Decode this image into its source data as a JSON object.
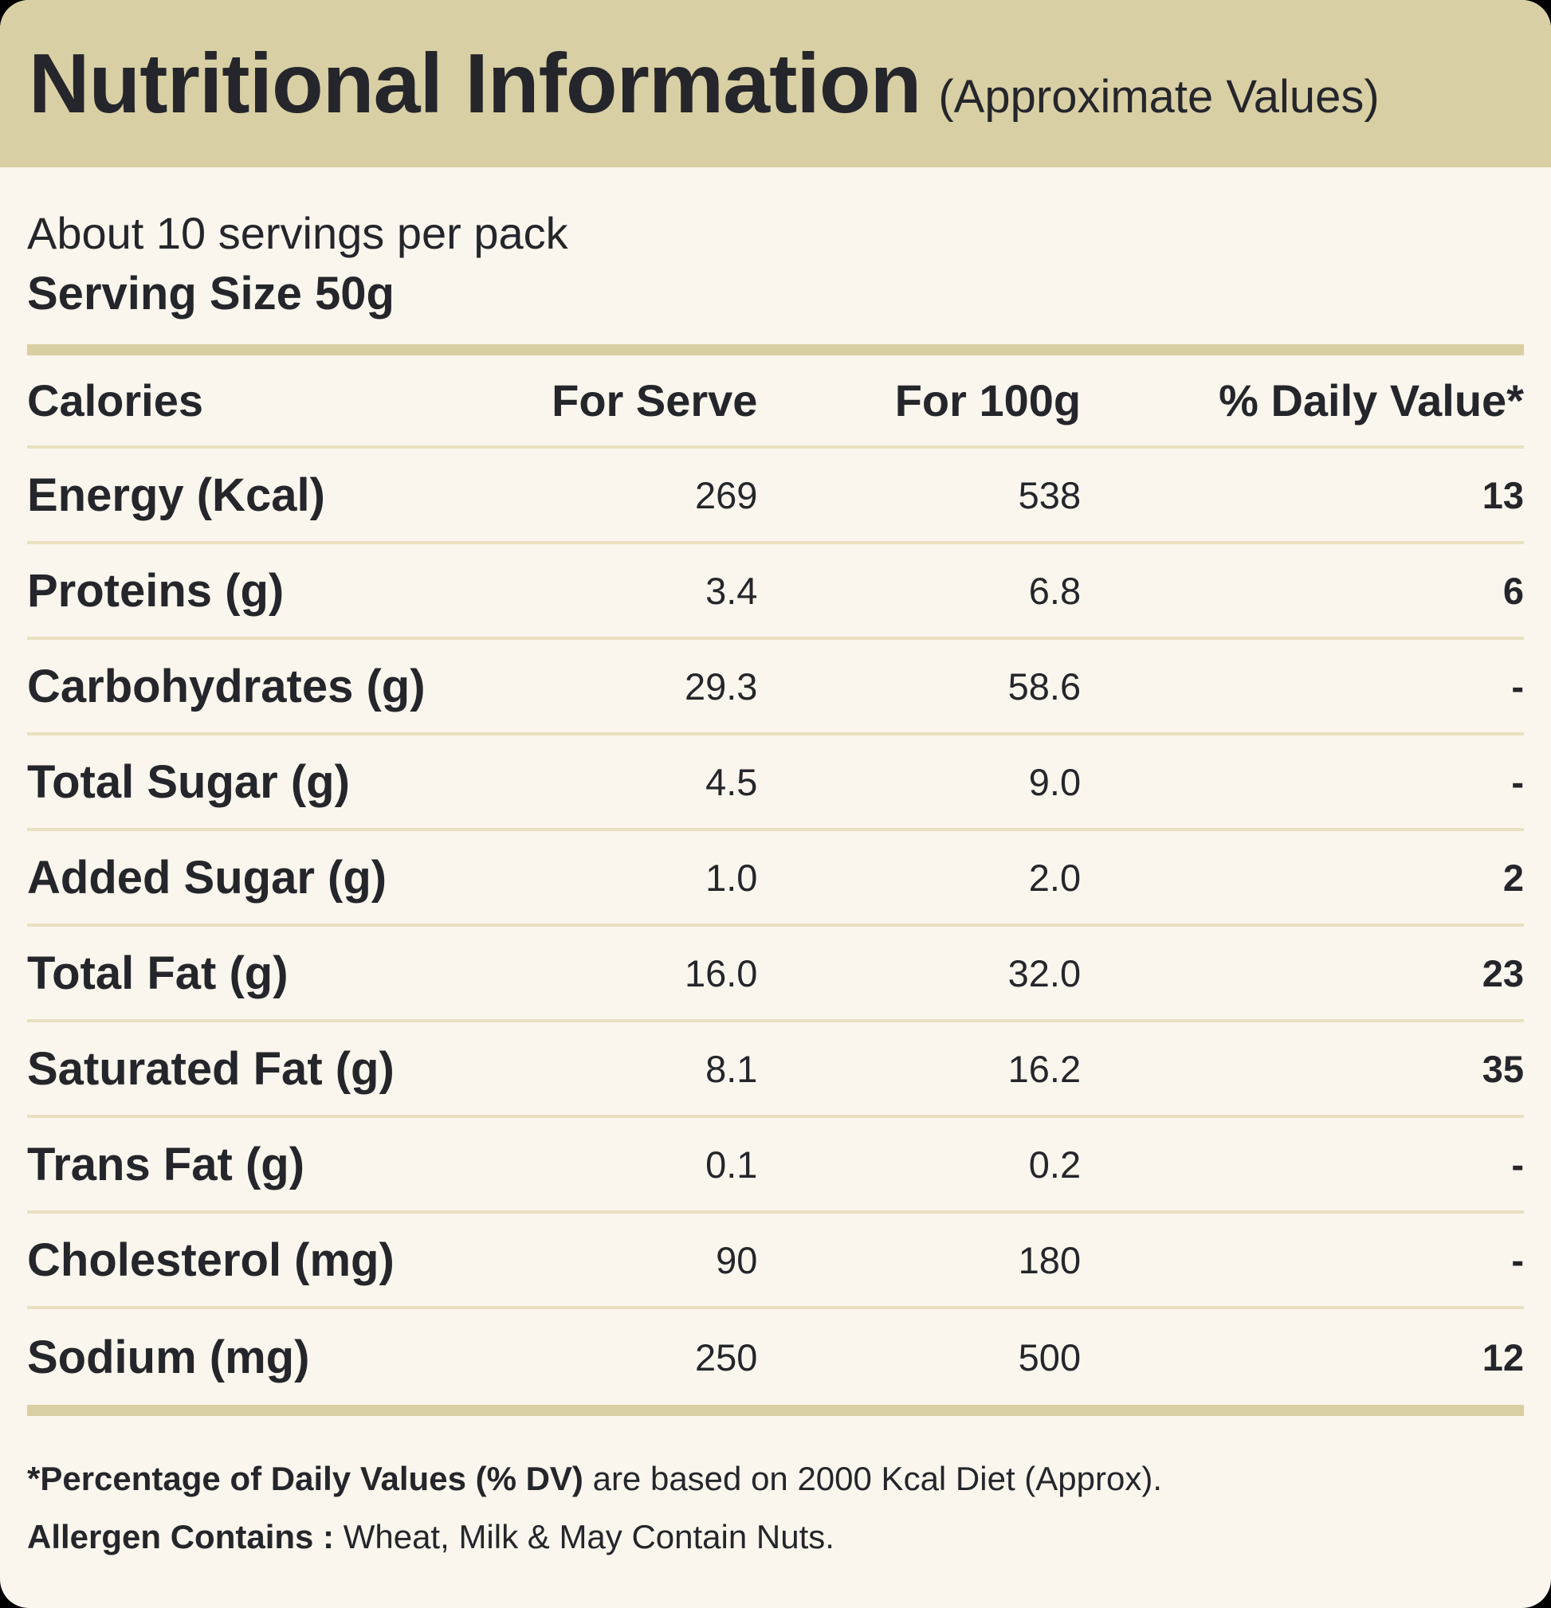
{
  "header": {
    "title": "Nutritional Information",
    "subtitle": "(Approximate Values)"
  },
  "serving": {
    "servings_per_pack": "About 10 servings per pack",
    "serving_size": "Serving Size 50g"
  },
  "table": {
    "columns": [
      "Calories",
      "For Serve",
      "For 100g",
      "% Daily Value*"
    ],
    "rows": [
      {
        "label": "Energy (Kcal)",
        "serve": "269",
        "per100": "538",
        "dv": "13"
      },
      {
        "label": "Proteins (g)",
        "serve": "3.4",
        "per100": "6.8",
        "dv": "6"
      },
      {
        "label": "Carbohydrates (g)",
        "serve": "29.3",
        "per100": "58.6",
        "dv": "-"
      },
      {
        "label": "Total Sugar (g)",
        "serve": "4.5",
        "per100": "9.0",
        "dv": "-"
      },
      {
        "label": "Added Sugar (g)",
        "serve": "1.0",
        "per100": "2.0",
        "dv": "2"
      },
      {
        "label": "Total Fat (g)",
        "serve": "16.0",
        "per100": "32.0",
        "dv": "23"
      },
      {
        "label": "Saturated Fat (g)",
        "serve": "8.1",
        "per100": "16.2",
        "dv": "35"
      },
      {
        "label": "Trans Fat (g)",
        "serve": "0.1",
        "per100": "0.2",
        "dv": "-"
      },
      {
        "label": "Cholesterol (mg)",
        "serve": "90",
        "per100": "180",
        "dv": "-"
      },
      {
        "label": "Sodium (mg)",
        "serve": "250",
        "per100": "500",
        "dv": "12"
      }
    ]
  },
  "footnotes": {
    "dv_bold": "*Percentage of Daily Values (% DV)",
    "dv_rest": " are based on 2000 Kcal Diet (Approx).",
    "allergen_bold": "Allergen Contains :",
    "allergen_rest": " Wheat, Milk &  May Contain Nuts."
  },
  "colors": {
    "band_tan": "#d8cfa4",
    "background_cream": "#faf6ed",
    "text_dark": "#25262b",
    "divider_thin": "#e8e0bf"
  }
}
